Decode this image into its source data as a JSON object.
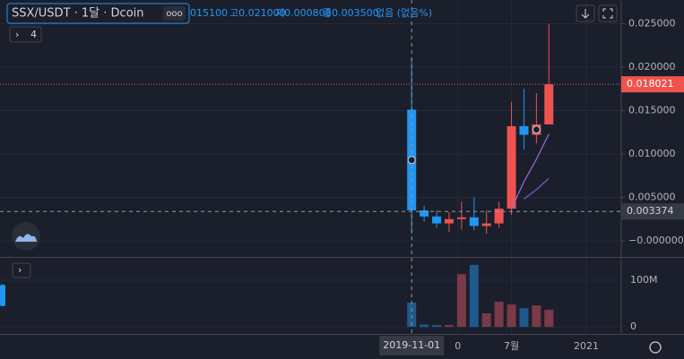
{
  "chart_data": {
    "type": "candlestick",
    "title": "SSX/USDT · 1달 · Dcoin",
    "indicator_count": "4",
    "ohlc_header": [
      "015100",
      "고0.021000",
      "저0.000808",
      "종0.003500",
      "없음 (없음%)"
    ],
    "categories": [
      "2019-11-01",
      null,
      null,
      null,
      null,
      null,
      null,
      null,
      null,
      null,
      null,
      null
    ],
    "xlim": [
      -33,
      16.8
    ],
    "xticks": [
      {
        "value": 3.7,
        "label": "0"
      },
      {
        "value": 8,
        "label": "7월"
      },
      {
        "value": 14,
        "label": "2021"
      }
    ],
    "open": [
      0.0151,
      0.0035,
      0.0028,
      0.002,
      0.0025,
      0.0027,
      0.0017,
      0.002,
      0.0037,
      0.0132,
      0.0122,
      0.0134
    ],
    "high": [
      0.021,
      0.004,
      0.0035,
      0.0033,
      0.0045,
      0.005,
      0.0035,
      0.0045,
      0.016,
      0.0175,
      0.017,
      0.025
    ],
    "low": [
      0.000808,
      0.0022,
      0.0015,
      0.001,
      0.0013,
      0.0012,
      0.0008,
      0.0015,
      0.003,
      0.0105,
      0.0112,
      0.0134
    ],
    "close": [
      0.0035,
      0.0028,
      0.002,
      0.0025,
      0.0027,
      0.0017,
      0.002,
      0.0037,
      0.0132,
      0.0122,
      0.0134,
      0.018021
    ],
    "up_color": "#ef5350",
    "down_color": "#2196f3",
    "ma_lines": [
      {
        "color": "#9c6ad6",
        "values": [
          null,
          null,
          null,
          null,
          null,
          null,
          null,
          null,
          0.0037,
          0.0068,
          0.0094,
          0.0123
        ]
      },
      {
        "color": "#7b5bb8",
        "values": [
          null,
          null,
          null,
          null,
          null,
          null,
          null,
          null,
          null,
          0.0048,
          0.0059,
          0.0072
        ]
      }
    ],
    "ylim": [
      -0.00186,
      0.02773
    ],
    "yticks": [
      {
        "value": 0.025,
        "label": "0.025000"
      },
      {
        "value": 0.02,
        "label": "0.020000"
      },
      {
        "value": 0.015,
        "label": "0.015000"
      },
      {
        "value": 0.01,
        "label": "0.010000"
      },
      {
        "value": 0.005,
        "label": "0.005000"
      },
      {
        "value": 0,
        "label": "−0.000000"
      }
    ],
    "last_price": {
      "value": 0.018021,
      "label": "0.018021"
    },
    "crosshair_price": {
      "value": 0.003374,
      "label": "0.003374"
    },
    "volume": {
      "values": [
        52000000,
        5000000,
        4000000,
        4000000,
        113000000,
        133000000,
        29000000,
        54000000,
        48000000,
        40000000,
        46000000,
        37000000
      ],
      "up_color": "#7a3a48",
      "down_color": "#1f5a8c",
      "ylim": [
        -15000000,
        148000000
      ],
      "yticks": [
        {
          "value": 100000000,
          "label": "100M"
        },
        0
      ]
    },
    "grid": true
  }
}
